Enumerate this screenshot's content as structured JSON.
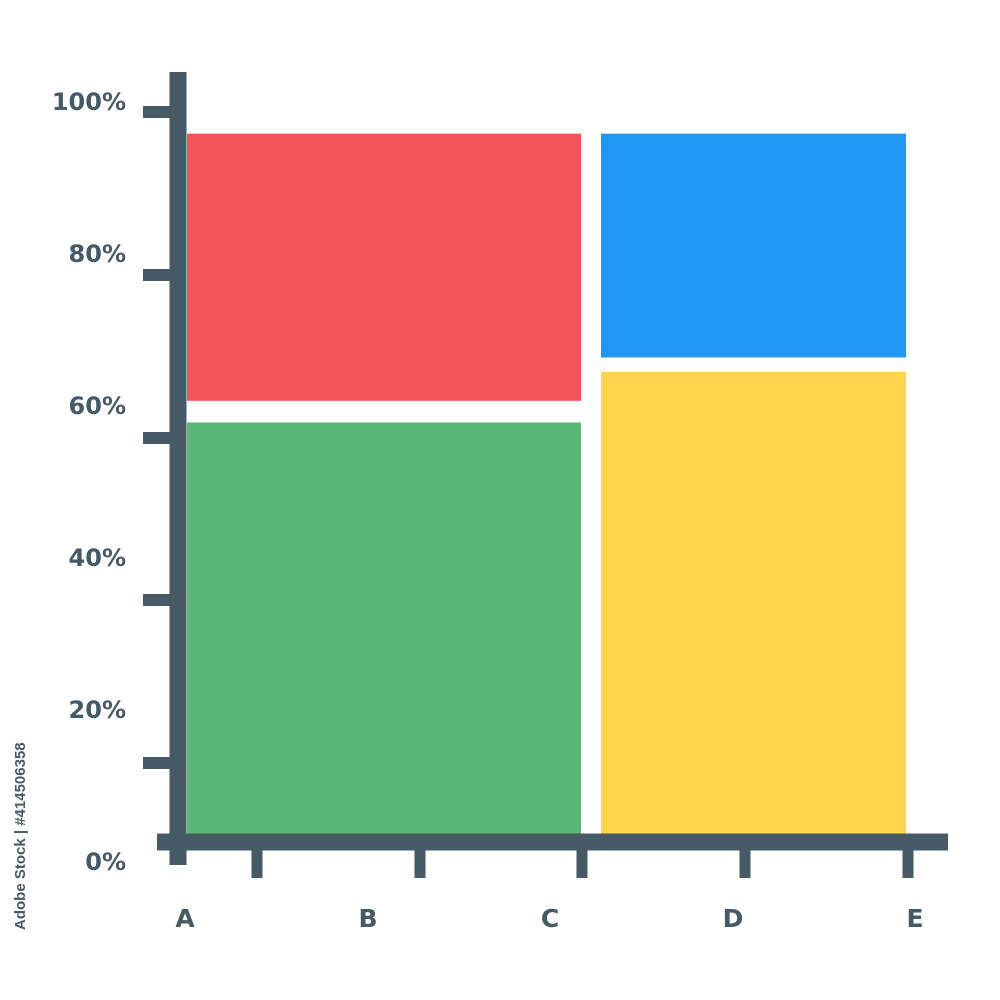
{
  "chart_data": {
    "type": "mosaic",
    "title": "",
    "xlabel": "",
    "ylabel": "",
    "y_ticks": [
      "0%",
      "20%",
      "40%",
      "60%",
      "80%",
      "100%"
    ],
    "x_ticks": [
      "A",
      "B",
      "C",
      "D",
      "E"
    ],
    "ylim": [
      0,
      100
    ],
    "grid": false,
    "columns": [
      {
        "x_start": "A",
        "x_end": "C",
        "segments": [
          {
            "y_start": 0,
            "y_end": 57,
            "color": "#5bb574"
          },
          {
            "y_start": 60,
            "y_end": 97,
            "color": "#f2545b"
          }
        ]
      },
      {
        "x_start": "C",
        "x_end": "E",
        "segments": [
          {
            "y_start": 0,
            "y_end": 64,
            "color": "#ffd54f"
          },
          {
            "y_start": 66,
            "y_end": 97,
            "color": "#2196f3"
          }
        ]
      }
    ],
    "axis_color": "#455a64"
  },
  "watermark": "Adobe Stock | #414506358"
}
